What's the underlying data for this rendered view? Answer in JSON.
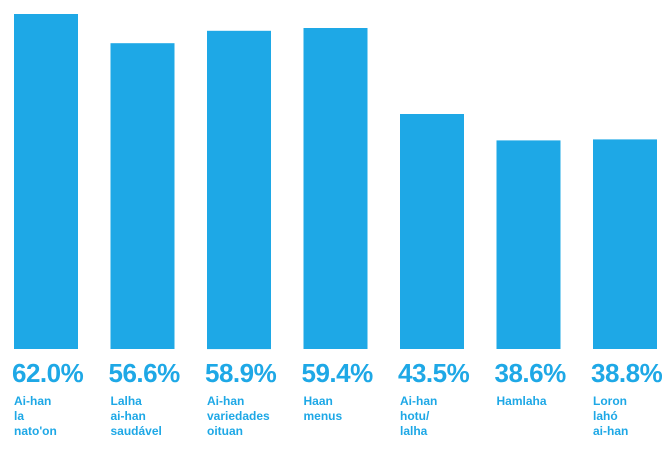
{
  "chart_data": {
    "type": "bar",
    "categories": [
      "Ai-han\nla\nnato'on",
      "Lalha\nai-han\nsaudável",
      "Ai-han\nvariedades\noituan",
      "Haan\nmenus",
      "Ai-han\nhotu/\nlalha",
      "Hamlaha",
      "Loron\nlahó\nai-han"
    ],
    "values": [
      62.0,
      56.6,
      58.9,
      59.4,
      43.5,
      38.6,
      38.8
    ],
    "value_labels": [
      "62.0%",
      "56.6%",
      "58.9%",
      "59.4%",
      "43.5%",
      "38.6%",
      "38.8%"
    ],
    "title": "",
    "xlabel": "",
    "ylabel": "",
    "ylim": [
      0,
      62.0
    ],
    "grid": false,
    "colors": {
      "bar": "#1ea8e6",
      "value_text": "#1ea8e6",
      "label_text": "#1ea8e6"
    }
  }
}
